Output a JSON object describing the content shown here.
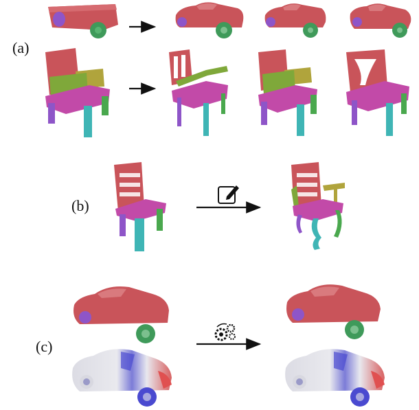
{
  "figure": {
    "panels": [
      {
        "id": "a",
        "label": "(a)"
      },
      {
        "id": "b",
        "label": "(b)"
      },
      {
        "id": "c",
        "label": "(c)"
      }
    ],
    "icons": {
      "edit": "edit-pencil-icon",
      "process": "gears-icon"
    },
    "part_colors": {
      "body": "#c9545a",
      "seat": "#c24aa8",
      "back_arm": "#b0a43c",
      "arm_green": "#7fa83a",
      "leg_purple": "#8e55c8",
      "leg_cyan": "#3fb5b5",
      "leg_green": "#4aa84e",
      "wheel_front": "#3f9a5a",
      "wheel_rear": "#8a5bc8",
      "heat_low": "#e8e8ec",
      "heat_blue": "#4a4ad0",
      "heat_red": "#e05050"
    }
  }
}
